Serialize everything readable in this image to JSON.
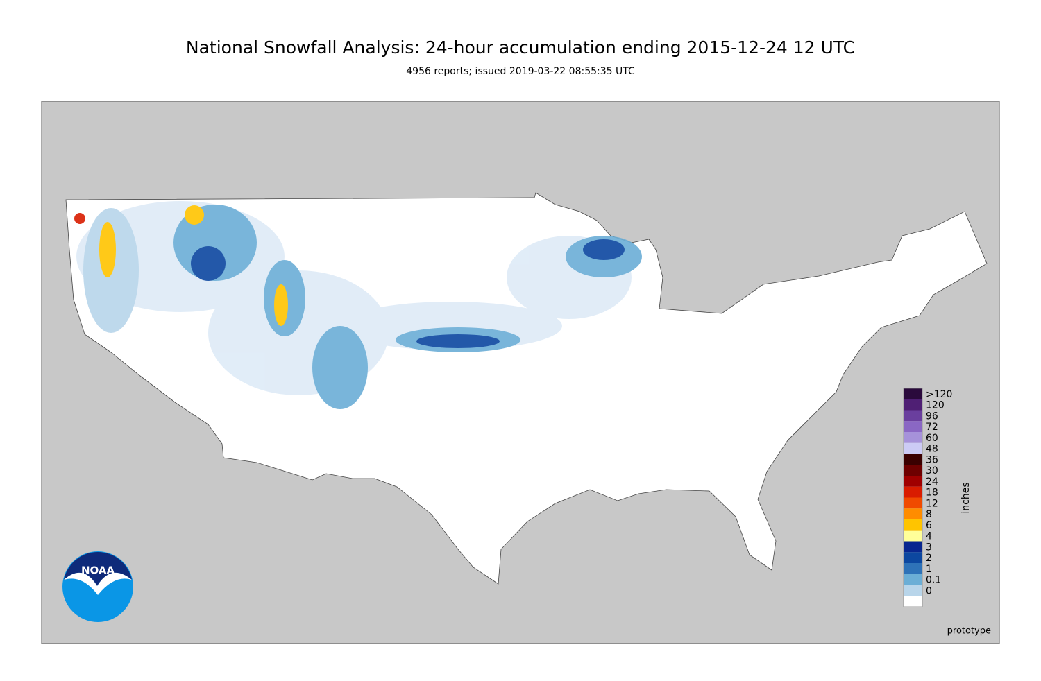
{
  "header": {
    "title": "National Snowfall Analysis: 24-hour accumulation ending 2015-12-24 12 UTC",
    "subtitle": "4956 reports; issued 2019-03-22 08:55:35 UTC"
  },
  "legend": {
    "title": "inches",
    "entries": [
      {
        "label": ">120",
        "color": "#2a0a3c"
      },
      {
        "label": "120",
        "color": "#4f1f74"
      },
      {
        "label": "96",
        "color": "#6a3f9e"
      },
      {
        "label": "72",
        "color": "#8a67c4"
      },
      {
        "label": "60",
        "color": "#a692da"
      },
      {
        "label": "48",
        "color": "#cccbf5"
      },
      {
        "label": "36",
        "color": "#3a0000"
      },
      {
        "label": "30",
        "color": "#6e0000"
      },
      {
        "label": "24",
        "color": "#a00000"
      },
      {
        "label": "18",
        "color": "#d91c00"
      },
      {
        "label": "12",
        "color": "#f04a00"
      },
      {
        "label": "8",
        "color": "#ff8c00"
      },
      {
        "label": "6",
        "color": "#ffc400"
      },
      {
        "label": "4",
        "color": "#ffff99"
      },
      {
        "label": "3",
        "color": "#08268f"
      },
      {
        "label": "2",
        "color": "#0c47a0"
      },
      {
        "label": "1",
        "color": "#2e72b8"
      },
      {
        "label": "0.1",
        "color": "#6baed6"
      },
      {
        "label": "0",
        "color": "#b8d5ea"
      }
    ]
  },
  "logo": {
    "text": "NOAA"
  },
  "footer": {
    "note": "prototype"
  }
}
